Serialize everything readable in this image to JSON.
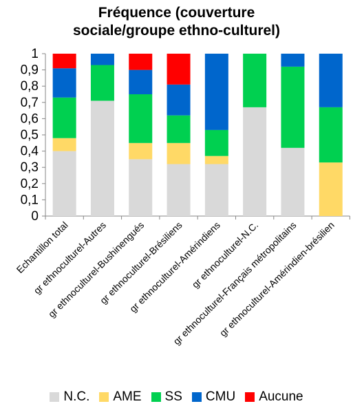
{
  "chart_data": {
    "type": "bar",
    "stacked": true,
    "title_lines": [
      "Fréquence (couverture",
      "sociale/groupe ethno-culturel)"
    ],
    "ylim": [
      0,
      1
    ],
    "yticks": [
      "0",
      "0,1",
      "0,2",
      "0,3",
      "0,4",
      "0,5",
      "0,6",
      "0,7",
      "0,8",
      "0,9",
      "1"
    ],
    "legend_position": "bottom",
    "grid": false,
    "categories": [
      "Echantillon total",
      "gr ethnoculturel-Autres",
      "gr ethnoculturel-Bushinengués",
      "gr ethnoculturel-Brésiliens",
      "gr ethnoculturel-Amérindiens",
      "gr ethnoculturel-N.C.",
      "gr ethnoculturel-Français métropolitains",
      "gr ethnoculturel-Amérindien-brésilien"
    ],
    "series": [
      {
        "name": "N.C.",
        "color": "#d9d9d9",
        "values": [
          0.4,
          0.71,
          0.35,
          0.32,
          0.32,
          0.67,
          0.42,
          0.0
        ]
      },
      {
        "name": "AME",
        "color": "#ffd966",
        "values": [
          0.08,
          0.0,
          0.1,
          0.13,
          0.05,
          0.0,
          0.0,
          0.33
        ]
      },
      {
        "name": "SS",
        "color": "#00d050",
        "values": [
          0.25,
          0.22,
          0.3,
          0.17,
          0.16,
          0.33,
          0.5,
          0.34
        ]
      },
      {
        "name": "CMU",
        "color": "#0066cc",
        "values": [
          0.18,
          0.07,
          0.15,
          0.19,
          0.47,
          0.0,
          0.08,
          0.33
        ]
      },
      {
        "name": "Aucune",
        "color": "#ff0000",
        "values": [
          0.09,
          0.0,
          0.1,
          0.19,
          0.0,
          0.0,
          0.0,
          0.0
        ]
      }
    ]
  }
}
